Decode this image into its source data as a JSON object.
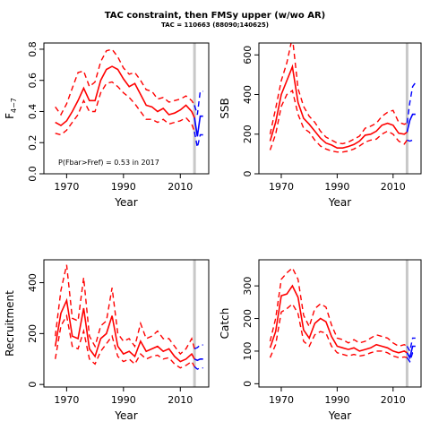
{
  "title": "TAC constraint, then FMSy upper (w/wo AR)",
  "subtitle": "TAC = 110663 (88090;140625)",
  "colors": {
    "history": "#ff0000",
    "projection": "#0000ff",
    "separator": "#c8c8c8"
  },
  "chart_data": [
    {
      "type": "line",
      "panel": "fbar",
      "xlabel": "Year",
      "ylabel_main": "F",
      "ylabel_sub": "4−7",
      "xlim": [
        1962,
        2020
      ],
      "ylim": [
        0,
        0.84
      ],
      "xticks": [
        1970,
        1990,
        2010
      ],
      "yticks": [
        0.0,
        0.2,
        0.4,
        0.6,
        0.8
      ],
      "ytick_labels": [
        "0.0",
        "0.2",
        "0.4",
        "0.6",
        "0.8"
      ],
      "separator_x": 2015,
      "annotation": "P(Fbar>Fref) = 0.53  in 2017",
      "history": {
        "x": [
          1966,
          1968,
          1970,
          1972,
          1974,
          1976,
          1978,
          1980,
          1982,
          1984,
          1986,
          1988,
          1990,
          1992,
          1994,
          1996,
          1998,
          2000,
          2002,
          2004,
          2006,
          2008,
          2010,
          2012,
          2014,
          2015
        ],
        "mid": [
          0.33,
          0.31,
          0.34,
          0.4,
          0.47,
          0.55,
          0.47,
          0.47,
          0.6,
          0.67,
          0.69,
          0.67,
          0.61,
          0.56,
          0.58,
          0.51,
          0.44,
          0.43,
          0.4,
          0.42,
          0.38,
          0.39,
          0.41,
          0.44,
          0.4,
          0.36
        ],
        "lower": [
          0.26,
          0.25,
          0.28,
          0.33,
          0.38,
          0.47,
          0.4,
          0.4,
          0.52,
          0.58,
          0.59,
          0.56,
          0.52,
          0.49,
          0.45,
          0.4,
          0.35,
          0.35,
          0.33,
          0.35,
          0.32,
          0.33,
          0.34,
          0.36,
          0.32,
          0.27
        ],
        "upper": [
          0.43,
          0.38,
          0.45,
          0.55,
          0.65,
          0.66,
          0.56,
          0.59,
          0.72,
          0.79,
          0.8,
          0.75,
          0.68,
          0.64,
          0.65,
          0.6,
          0.54,
          0.53,
          0.48,
          0.49,
          0.46,
          0.47,
          0.48,
          0.5,
          0.47,
          0.44
        ]
      },
      "projection": {
        "x": [
          2015,
          2016,
          2017,
          2018
        ],
        "mid": [
          0.36,
          0.24,
          0.37,
          0.37
        ],
        "lower": [
          0.27,
          0.17,
          0.25,
          0.25
        ],
        "upper": [
          0.44,
          0.38,
          0.53,
          0.53
        ]
      }
    },
    {
      "type": "line",
      "panel": "ssb",
      "xlabel": "Year",
      "ylabel": "SSB",
      "xlim": [
        1962,
        2020
      ],
      "ylim": [
        0,
        660
      ],
      "xticks": [
        1970,
        1990,
        2010
      ],
      "yticks": [
        0,
        200,
        400,
        600
      ],
      "ytick_labels": [
        "0",
        "200",
        "400",
        "600"
      ],
      "separator_x": 2015,
      "history": {
        "x": [
          1966,
          1968,
          1970,
          1972,
          1974,
          1976,
          1978,
          1980,
          1982,
          1984,
          1986,
          1988,
          1990,
          1992,
          1994,
          1996,
          1998,
          2000,
          2002,
          2004,
          2006,
          2008,
          2010,
          2012,
          2014,
          2015
        ],
        "mid": [
          165,
          260,
          400,
          470,
          540,
          360,
          280,
          250,
          215,
          180,
          155,
          145,
          130,
          130,
          138,
          148,
          165,
          195,
          200,
          215,
          245,
          255,
          245,
          205,
          200,
          210
        ],
        "lower": [
          120,
          200,
          340,
          400,
          420,
          300,
          230,
          210,
          170,
          140,
          125,
          115,
          110,
          110,
          115,
          125,
          140,
          160,
          170,
          175,
          200,
          215,
          200,
          165,
          150,
          170
        ],
        "upper": [
          200,
          330,
          470,
          560,
          690,
          430,
          340,
          290,
          260,
          215,
          185,
          170,
          155,
          152,
          160,
          175,
          190,
          230,
          240,
          255,
          290,
          310,
          320,
          260,
          250,
          255
        ]
      },
      "projection": {
        "x": [
          2015,
          2016,
          2017,
          2018
        ],
        "mid": [
          210,
          270,
          300,
          300
        ],
        "lower": [
          170,
          165,
          170,
          170
        ],
        "upper": [
          255,
          360,
          440,
          460
        ]
      }
    },
    {
      "type": "line",
      "panel": "recruitment",
      "xlabel": "Year",
      "ylabel": "Recruitment",
      "xlim": [
        1962,
        2020
      ],
      "ylim": [
        -10,
        490
      ],
      "xticks": [
        1970,
        1990,
        2010
      ],
      "yticks": [
        0,
        200,
        400
      ],
      "ytick_labels": [
        "0",
        "200",
        "400"
      ],
      "separator_x": 2015,
      "history": {
        "x": [
          1966,
          1968,
          1970,
          1972,
          1974,
          1976,
          1978,
          1980,
          1982,
          1984,
          1986,
          1988,
          1990,
          1992,
          1994,
          1996,
          1998,
          2000,
          2002,
          2004,
          2006,
          2008,
          2010,
          2012,
          2014,
          2015
        ],
        "mid": [
          150,
          280,
          330,
          190,
          180,
          300,
          140,
          110,
          180,
          200,
          270,
          150,
          120,
          130,
          110,
          170,
          130,
          140,
          150,
          130,
          140,
          110,
          90,
          100,
          120,
          100
        ],
        "lower": [
          100,
          230,
          270,
          150,
          140,
          210,
          100,
          80,
          130,
          160,
          190,
          110,
          90,
          100,
          80,
          120,
          100,
          110,
          115,
          100,
          105,
          80,
          65,
          75,
          90,
          70
        ],
        "upper": [
          190,
          370,
          470,
          260,
          250,
          420,
          190,
          150,
          230,
          250,
          380,
          200,
          170,
          180,
          150,
          240,
          180,
          190,
          210,
          180,
          180,
          150,
          120,
          140,
          180,
          140
        ]
      },
      "projection": {
        "x": [
          2015,
          2016,
          2017,
          2018
        ],
        "mid": [
          100,
          95,
          100,
          100
        ],
        "lower": [
          70,
          60,
          65,
          65
        ],
        "upper": [
          140,
          145,
          155,
          155
        ]
      }
    },
    {
      "type": "line",
      "panel": "catch",
      "xlabel": "Year",
      "ylabel": "Catch",
      "xlim": [
        1962,
        2020
      ],
      "ylim": [
        -10,
        380
      ],
      "xticks": [
        1970,
        1990,
        2010
      ],
      "yticks": [
        0,
        100,
        200,
        300
      ],
      "ytick_labels": [
        "0",
        "100",
        "200",
        "300"
      ],
      "separator_x": 2015,
      "history": {
        "x": [
          1966,
          1968,
          1970,
          1972,
          1974,
          1976,
          1978,
          1980,
          1982,
          1984,
          1986,
          1988,
          1990,
          1992,
          1994,
          1996,
          1998,
          2000,
          2002,
          2004,
          2006,
          2008,
          2010,
          2012,
          2014,
          2015
        ],
        "mid": [
          110,
          160,
          270,
          275,
          300,
          265,
          165,
          140,
          185,
          200,
          190,
          145,
          115,
          110,
          105,
          110,
          100,
          105,
          110,
          120,
          115,
          110,
          100,
          95,
          100,
          95
        ],
        "lower": [
          80,
          120,
          220,
          230,
          245,
          215,
          130,
          115,
          150,
          160,
          155,
          115,
          95,
          90,
          85,
          90,
          85,
          88,
          95,
          100,
          100,
          95,
          85,
          80,
          82,
          80
        ],
        "upper": [
          130,
          200,
          320,
          340,
          355,
          320,
          210,
          175,
          230,
          245,
          235,
          180,
          140,
          135,
          125,
          135,
          125,
          130,
          140,
          150,
          145,
          140,
          125,
          115,
          120,
          115
        ]
      },
      "projection": {
        "x": [
          2015,
          2016,
          2017,
          2018
        ],
        "mid": [
          95,
          80,
          115,
          115
        ],
        "lower": [
          80,
          68,
          95,
          95
        ],
        "upper": [
          115,
          100,
          140,
          140
        ]
      }
    }
  ]
}
